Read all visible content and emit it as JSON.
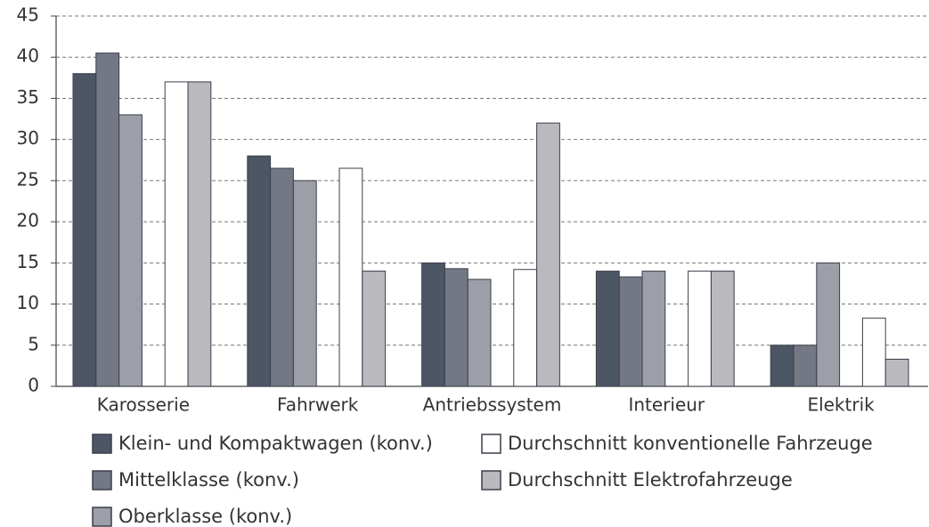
{
  "chart_data": {
    "type": "bar",
    "categories": [
      "Karosserie",
      "Fahrwerk",
      "Antriebssystem",
      "Interieur",
      "Elektrik"
    ],
    "series": [
      {
        "name": "Klein- und Kompaktwagen (konv.)",
        "color": "#4d5665",
        "values": [
          38,
          28,
          15,
          14,
          5
        ]
      },
      {
        "name": "Mittelklasse (konv.)",
        "color": "#747884",
        "values": [
          40.5,
          26.5,
          14.3,
          13.3,
          5
        ]
      },
      {
        "name": "Oberklasse (konv.)",
        "color": "#9c9ea8",
        "values": [
          33,
          25,
          13,
          14,
          15
        ]
      },
      {
        "name": "Durchschnitt konventionelle Fahrzeuge",
        "color": "#ffffff",
        "values": [
          37,
          26.5,
          14.2,
          14,
          8.3
        ]
      },
      {
        "name": "Durchschnitt Elektrofahrzeuge",
        "color": "#b9b9be",
        "values": [
          37,
          14,
          32,
          14,
          3.3
        ]
      }
    ],
    "ylim": [
      0,
      45
    ],
    "yticks": [
      0,
      5,
      10,
      15,
      20,
      25,
      30,
      35,
      40,
      45
    ],
    "grid": true
  }
}
